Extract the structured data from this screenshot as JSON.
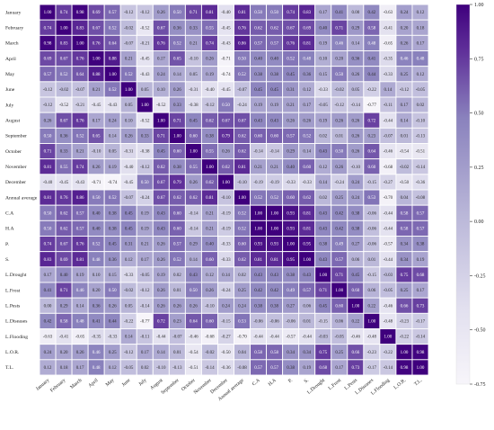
{
  "chart_data": {
    "type": "heatmap",
    "title": "",
    "xlabel": "",
    "ylabel": "",
    "labels": [
      "January",
      "February",
      "March",
      "April",
      "May",
      "June",
      "July",
      "August",
      "September",
      "October",
      "November",
      "December",
      "Annual average",
      "C.A",
      "H.A",
      "P.",
      "S.",
      "L.Drought",
      "L.Frost",
      "L.Pests",
      "L.Diseases",
      "L.Flooding",
      "L.O.R.",
      "T.L."
    ],
    "colorbar": {
      "min": -0.75,
      "max": 1.0,
      "ticks": [
        "-0.75",
        "-0.50",
        "-0.25",
        "0.00",
        "0.25",
        "0.50",
        "0.75",
        "1.00"
      ],
      "low_color": "#f7f5fa",
      "high_color": "#3f007d"
    },
    "values": [
      [
        1.0,
        0.74,
        0.98,
        0.69,
        0.57,
        -0.12,
        -0.12,
        0.26,
        0.5,
        0.71,
        0.81,
        -0.4,
        0.81,
        0.5,
        0.5,
        0.74,
        0.83,
        0.17,
        0.41,
        0.0,
        0.42,
        -0.63,
        0.24,
        0.12
      ],
      [
        0.74,
        1.0,
        0.83,
        0.67,
        0.52,
        -0.02,
        -0.52,
        0.67,
        0.36,
        0.33,
        0.55,
        -0.45,
        0.76,
        0.62,
        0.62,
        0.67,
        0.69,
        0.4,
        0.71,
        0.29,
        0.58,
        -0.41,
        0.2,
        0.18
      ],
      [
        0.98,
        0.83,
        1.0,
        0.76,
        0.64,
        -0.07,
        -0.21,
        0.76,
        0.52,
        0.21,
        0.74,
        -0.43,
        0.86,
        0.57,
        0.57,
        0.76,
        0.81,
        0.19,
        0.46,
        0.14,
        0.48,
        -0.65,
        0.26,
        0.17
      ],
      [
        0.69,
        0.67,
        0.76,
        1.0,
        0.88,
        0.21,
        -0.45,
        0.17,
        0.65,
        -0.1,
        0.26,
        -0.71,
        0.5,
        0.4,
        0.4,
        0.52,
        0.48,
        0.1,
        0.2,
        0.36,
        0.41,
        -0.35,
        0.46,
        0.48
      ],
      [
        0.57,
        0.52,
        0.64,
        0.88,
        1.0,
        0.52,
        -0.43,
        0.24,
        0.14,
        0.05,
        0.19,
        -0.74,
        0.52,
        0.38,
        0.38,
        0.45,
        0.36,
        0.15,
        0.5,
        0.26,
        0.44,
        -0.33,
        0.25,
        0.12
      ],
      [
        -0.12,
        -0.02,
        -0.07,
        0.21,
        0.52,
        1.0,
        0.05,
        0.1,
        0.26,
        -0.31,
        -0.4,
        -0.45,
        -0.07,
        0.45,
        0.45,
        0.31,
        0.12,
        -0.33,
        -0.02,
        0.05,
        -0.22,
        0.14,
        -0.12,
        -0.05
      ],
      [
        -0.12,
        -0.52,
        -0.21,
        -0.45,
        -0.43,
        0.05,
        1.0,
        -0.52,
        0.33,
        -0.38,
        -0.12,
        0.5,
        -0.24,
        0.19,
        0.19,
        0.21,
        0.17,
        -0.05,
        -0.12,
        -0.14,
        -0.77,
        -0.11,
        0.17,
        0.02
      ],
      [
        0.26,
        0.67,
        0.76,
        0.17,
        0.24,
        0.1,
        -0.52,
        1.0,
        0.71,
        0.45,
        0.62,
        0.67,
        0.67,
        0.43,
        0.43,
        0.26,
        0.26,
        0.19,
        0.26,
        0.26,
        0.72,
        -0.44,
        0.14,
        -0.1
      ],
      [
        0.5,
        0.36,
        0.52,
        0.65,
        0.14,
        0.26,
        0.33,
        0.71,
        1.0,
        0.6,
        0.38,
        0.79,
        0.62,
        0.6,
        0.6,
        0.57,
        0.52,
        0.02,
        0.01,
        0.26,
        0.23,
        -0.07,
        0.01,
        -0.13
      ],
      [
        0.71,
        0.33,
        0.21,
        -0.1,
        0.05,
        -0.31,
        -0.38,
        0.45,
        0.6,
        1.0,
        0.55,
        0.26,
        0.62,
        -0.14,
        -0.14,
        0.29,
        0.14,
        0.43,
        0.5,
        0.26,
        0.64,
        -0.46,
        -0.54,
        -0.51
      ],
      [
        0.81,
        0.55,
        0.74,
        0.26,
        0.19,
        -0.4,
        -0.12,
        0.62,
        0.38,
        0.55,
        1.0,
        0.62,
        0.81,
        0.21,
        0.21,
        0.4,
        0.6,
        0.12,
        0.26,
        -0.1,
        0.6,
        -0.68,
        -0.02,
        -0.14
      ],
      [
        -0.4,
        -0.45,
        -0.43,
        -0.71,
        -0.74,
        -0.45,
        0.5,
        0.67,
        0.79,
        0.26,
        0.62,
        1.0,
        -0.1,
        -0.19,
        -0.19,
        -0.33,
        -0.33,
        0.14,
        -0.24,
        0.24,
        -0.15,
        -0.27,
        -0.5,
        -0.36
      ],
      [
        0.81,
        0.76,
        0.86,
        0.5,
        0.52,
        -0.07,
        -0.24,
        0.67,
        0.62,
        0.62,
        0.81,
        -0.1,
        1.0,
        0.52,
        0.52,
        0.6,
        0.62,
        0.02,
        0.25,
        0.24,
        0.53,
        -0.7,
        0.04,
        -0.08
      ],
      [
        0.5,
        0.62,
        0.57,
        0.4,
        0.38,
        0.45,
        0.19,
        0.43,
        0.6,
        -0.14,
        0.21,
        -0.19,
        0.52,
        1.0,
        1.0,
        0.93,
        0.81,
        0.43,
        0.42,
        0.38,
        -0.06,
        -0.44,
        0.58,
        0.57
      ],
      [
        0.5,
        0.62,
        0.57,
        0.4,
        0.38,
        0.45,
        0.19,
        0.43,
        0.6,
        -0.14,
        0.21,
        -0.19,
        0.52,
        1.0,
        1.0,
        0.93,
        0.81,
        0.43,
        0.42,
        0.38,
        -0.06,
        -0.44,
        0.58,
        0.57
      ],
      [
        0.74,
        0.67,
        0.76,
        0.52,
        0.45,
        0.31,
        0.21,
        0.26,
        0.57,
        0.29,
        0.4,
        -0.33,
        0.6,
        0.93,
        0.93,
        1.0,
        0.95,
        0.38,
        0.49,
        0.27,
        -0.06,
        -0.57,
        0.34,
        0.38
      ],
      [
        0.83,
        0.69,
        0.81,
        0.48,
        0.36,
        0.12,
        0.17,
        0.26,
        0.52,
        0.14,
        0.6,
        -0.33,
        0.62,
        0.81,
        0.81,
        0.95,
        1.0,
        0.43,
        0.57,
        0.06,
        0.01,
        -0.44,
        0.34,
        0.19
      ],
      [
        0.17,
        0.4,
        0.19,
        0.1,
        0.15,
        -0.33,
        -0.05,
        0.19,
        0.02,
        0.43,
        0.12,
        0.14,
        0.02,
        0.43,
        0.43,
        0.38,
        0.43,
        1.0,
        0.71,
        0.45,
        -0.15,
        -0.03,
        0.75,
        0.68
      ],
      [
        0.41,
        0.71,
        0.46,
        0.2,
        0.5,
        -0.02,
        -0.12,
        0.26,
        0.01,
        0.5,
        0.26,
        -0.24,
        0.25,
        0.42,
        0.42,
        0.49,
        0.57,
        0.71,
        1.0,
        0.6,
        0.06,
        -0.05,
        0.25,
        0.17
      ],
      [
        0.0,
        0.29,
        0.14,
        0.36,
        0.26,
        0.05,
        -0.14,
        0.26,
        0.26,
        0.26,
        -0.1,
        0.24,
        0.24,
        0.38,
        0.38,
        0.27,
        0.06,
        0.45,
        0.6,
        1.0,
        0.22,
        -0.46,
        0.66,
        0.73
      ],
      [
        0.42,
        0.58,
        0.48,
        0.41,
        0.44,
        -0.22,
        -0.77,
        0.72,
        0.23,
        0.64,
        0.6,
        -0.15,
        0.53,
        -0.06,
        -0.06,
        -0.06,
        0.01,
        -0.15,
        0.06,
        0.22,
        1.0,
        -0.48,
        -0.23,
        -0.17
      ],
      [
        -0.63,
        -0.41,
        -0.65,
        -0.35,
        -0.33,
        0.14,
        -0.11,
        -0.44,
        -0.07,
        -0.46,
        -0.68,
        -0.27,
        -0.7,
        -0.44,
        -0.44,
        -0.57,
        -0.44,
        -0.03,
        -0.05,
        -0.46,
        -0.48,
        1.0,
        -0.22,
        -0.14
      ],
      [
        0.24,
        0.2,
        0.26,
        0.46,
        0.25,
        -0.12,
        0.17,
        0.14,
        0.01,
        -0.54,
        -0.02,
        -0.5,
        0.04,
        0.58,
        0.58,
        0.34,
        0.34,
        0.75,
        0.25,
        0.66,
        -0.23,
        -0.22,
        1.0,
        0.98
      ],
      [
        0.12,
        0.18,
        0.17,
        0.48,
        0.12,
        -0.05,
        0.02,
        -0.1,
        -0.13,
        -0.51,
        -0.14,
        -0.36,
        -0.08,
        0.57,
        0.57,
        0.38,
        0.19,
        0.68,
        0.17,
        0.73,
        -0.17,
        -0.14,
        0.98,
        1.0
      ]
    ]
  }
}
